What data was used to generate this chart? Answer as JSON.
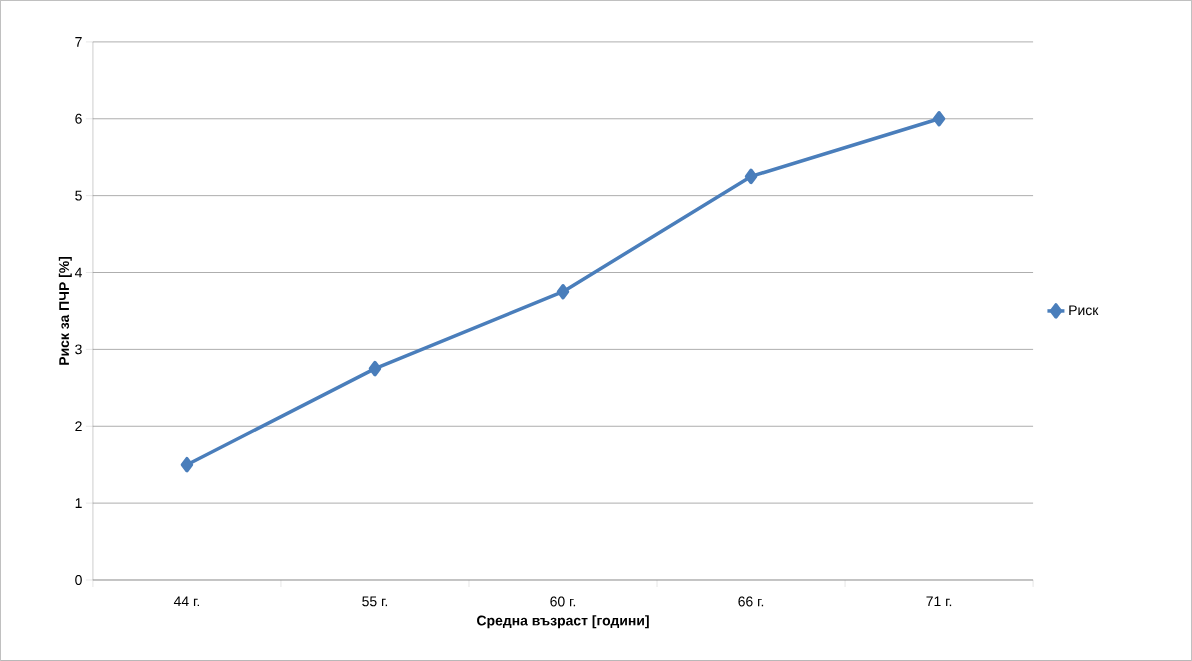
{
  "chart_data": {
    "type": "line",
    "xlabel": "Средна възраст [години]",
    "ylabel": "Риск за ПЧР [%]",
    "categories": [
      "44 г.",
      "55 г.",
      "60 г.",
      "66 г.",
      "71 г."
    ],
    "series": [
      {
        "name": "Риск",
        "color": "#4a7ebb",
        "values": [
          1.5,
          2.75,
          3.75,
          5.25,
          6.0
        ]
      }
    ],
    "ylim": [
      0,
      7
    ],
    "yticks": [
      0,
      1,
      2,
      3,
      4,
      5,
      6,
      7
    ],
    "grid": "y",
    "legend": "right",
    "marker": "diamond",
    "line_style": "solid"
  }
}
